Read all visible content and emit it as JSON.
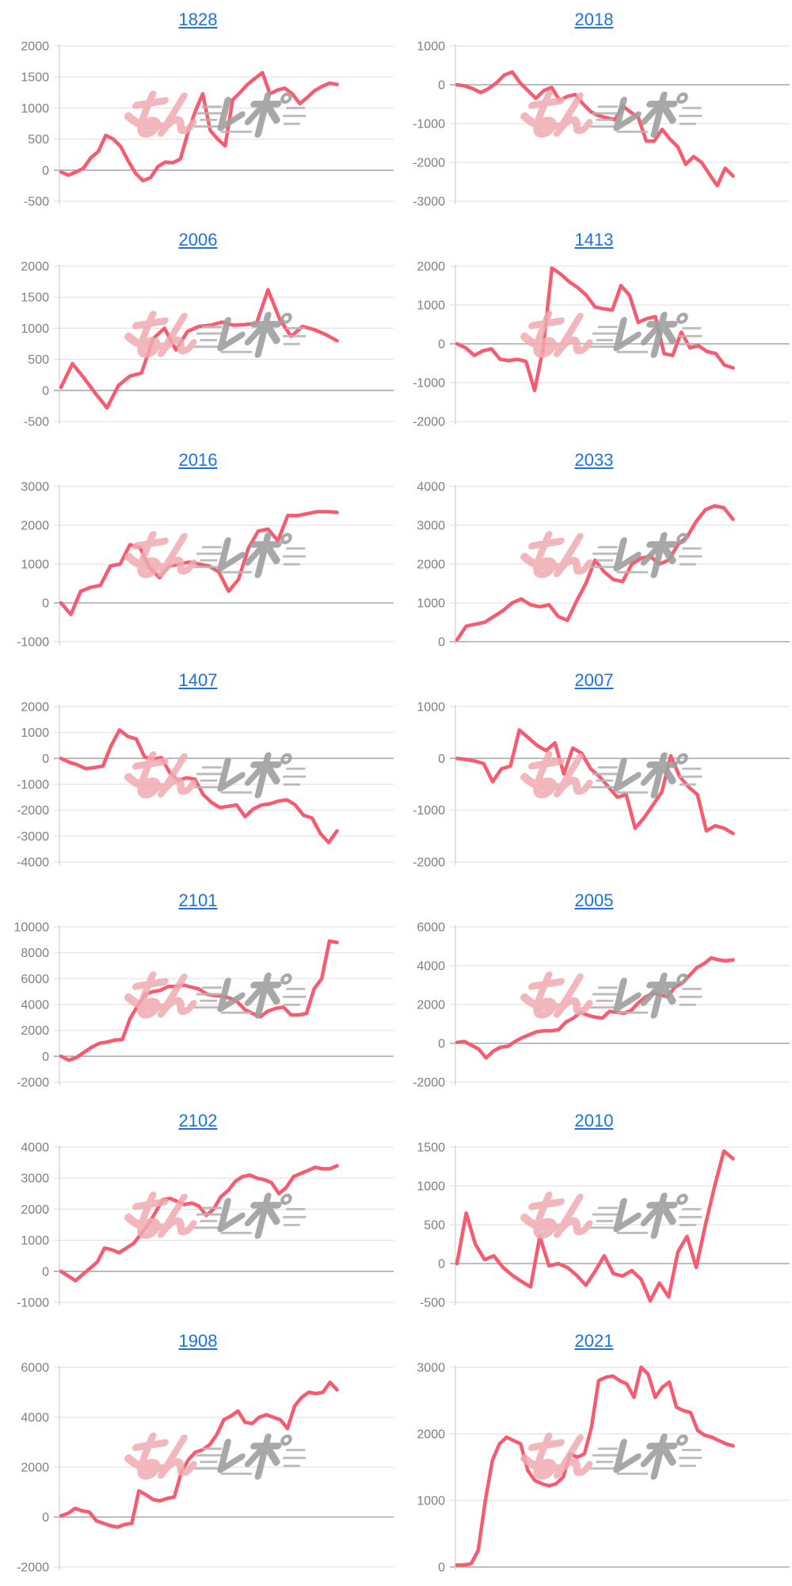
{
  "watermark": {
    "text": "みんレポ",
    "pink": "#f0abb1",
    "gray": "#9f9f9f",
    "speed": "#b5b5b5"
  },
  "style": {
    "background": "#ffffff",
    "line_color": "#f85b6f",
    "title_color": "#1a73e8",
    "axis_label_color": "#7f7f7f",
    "grid_color": "#e3e3e3",
    "zero_line_color": "#a9a9a9",
    "axis_line_color": "#cfcfcf"
  },
  "chart_data": [
    {
      "type": "line",
      "title": "1828",
      "ylim": [
        -500,
        2000
      ],
      "yticks": [
        2000,
        1500,
        1000,
        500,
        0,
        -500
      ],
      "values": [
        -30,
        -80,
        -30,
        30,
        200,
        300,
        560,
        500,
        380,
        150,
        -50,
        -170,
        -120,
        60,
        130,
        120,
        180,
        600,
        950,
        1230,
        640,
        500,
        390,
        1130,
        1250,
        1380,
        1480,
        1570,
        1230,
        1290,
        1320,
        1230,
        1070,
        1170,
        1280,
        1350,
        1400,
        1380
      ]
    },
    {
      "type": "line",
      "title": "2018",
      "ylim": [
        -3000,
        1000
      ],
      "yticks": [
        1000,
        0,
        -1000,
        -2000,
        -3000
      ],
      "values": [
        0,
        -30,
        -100,
        -200,
        -100,
        50,
        250,
        330,
        50,
        -150,
        -350,
        -150,
        -70,
        -400,
        -300,
        -250,
        -500,
        -700,
        -800,
        -850,
        -900,
        -550,
        -700,
        -850,
        -1450,
        -1450,
        -1150,
        -1400,
        -1600,
        -2050,
        -1850,
        -2000,
        -2300,
        -2600,
        -2150,
        -2350
      ]
    },
    {
      "type": "line",
      "title": "2006",
      "ylim": [
        -500,
        2000
      ],
      "yticks": [
        2000,
        1500,
        1000,
        500,
        0,
        -500
      ],
      "values": [
        50,
        430,
        200,
        -50,
        -280,
        80,
        230,
        280,
        830,
        1000,
        650,
        950,
        1030,
        1050,
        1100,
        1050,
        1060,
        1080,
        1620,
        1150,
        870,
        1030,
        980,
        900,
        800
      ]
    },
    {
      "type": "line",
      "title": "1413",
      "ylim": [
        -2000,
        2000
      ],
      "yticks": [
        2000,
        1000,
        0,
        -1000,
        -2000
      ],
      "values": [
        0,
        -100,
        -300,
        -180,
        -130,
        -400,
        -430,
        -400,
        -450,
        -1200,
        -100,
        1950,
        1800,
        1600,
        1450,
        1250,
        950,
        900,
        870,
        1500,
        1250,
        550,
        650,
        700,
        -250,
        -300,
        300,
        -100,
        -50,
        -200,
        -250,
        -550,
        -620
      ]
    },
    {
      "type": "line",
      "title": "2016",
      "ylim": [
        -1000,
        3000
      ],
      "yticks": [
        3000,
        2000,
        1000,
        0,
        -1000
      ],
      "values": [
        0,
        -300,
        300,
        400,
        450,
        950,
        1000,
        1500,
        1430,
        900,
        650,
        950,
        1000,
        1050,
        1000,
        950,
        800,
        300,
        600,
        1400,
        1850,
        1900,
        1600,
        2250,
        2250,
        2300,
        2350,
        2350,
        2330
      ]
    },
    {
      "type": "line",
      "title": "2033",
      "ylim": [
        0,
        4000
      ],
      "yticks": [
        4000,
        3000,
        2000,
        1000,
        0
      ],
      "values": [
        50,
        400,
        450,
        500,
        650,
        800,
        1000,
        1100,
        950,
        900,
        950,
        650,
        550,
        1050,
        1500,
        2100,
        1800,
        1600,
        1550,
        2000,
        2150,
        2200,
        2000,
        2100,
        2500,
        2700,
        3100,
        3400,
        3500,
        3450,
        3150
      ]
    },
    {
      "type": "line",
      "title": "1407",
      "ylim": [
        -4000,
        2000
      ],
      "yticks": [
        2000,
        1000,
        0,
        -1000,
        -2000,
        -3000,
        -4000
      ],
      "values": [
        0,
        -150,
        -250,
        -400,
        -350,
        -300,
        500,
        1100,
        850,
        750,
        50,
        -30,
        30,
        -550,
        -850,
        -750,
        -800,
        -1400,
        -1700,
        -1900,
        -1850,
        -1800,
        -2250,
        -1950,
        -1800,
        -1750,
        -1650,
        -1600,
        -1800,
        -2200,
        -2300,
        -2900,
        -3250,
        -2800
      ]
    },
    {
      "type": "line",
      "title": "2007",
      "ylim": [
        -2000,
        1000
      ],
      "yticks": [
        1000,
        0,
        -1000,
        -2000
      ],
      "values": [
        0,
        -20,
        -50,
        -100,
        -450,
        -200,
        -150,
        550,
        400,
        250,
        150,
        300,
        -300,
        200,
        100,
        -200,
        -350,
        -550,
        -750,
        -700,
        -1350,
        -1150,
        -900,
        -650,
        50,
        -350,
        -550,
        -700,
        -1400,
        -1300,
        -1350,
        -1450
      ]
    },
    {
      "type": "line",
      "title": "2101",
      "ylim": [
        -2000,
        10000
      ],
      "yticks": [
        10000,
        8000,
        6000,
        4000,
        2000,
        0,
        -2000
      ],
      "values": [
        0,
        -300,
        -100,
        300,
        700,
        1000,
        1100,
        1250,
        1300,
        2900,
        3900,
        4800,
        5000,
        5100,
        5400,
        5400,
        5500,
        5350,
        5200,
        4800,
        4700,
        4650,
        4500,
        4200,
        3600,
        3300,
        3050,
        3500,
        3700,
        3800,
        3200,
        3200,
        3300,
        5200,
        6000,
        8900,
        8800
      ]
    },
    {
      "type": "line",
      "title": "2005",
      "ylim": [
        -2000,
        6000
      ],
      "yticks": [
        6000,
        4000,
        2000,
        0,
        -2000
      ],
      "values": [
        50,
        100,
        -100,
        -300,
        -750,
        -400,
        -200,
        -150,
        100,
        300,
        450,
        600,
        650,
        650,
        700,
        1100,
        1300,
        1600,
        1450,
        1350,
        1300,
        1650,
        1600,
        1550,
        1700,
        2100,
        2400,
        2600,
        2500,
        2400,
        2900,
        3100,
        3500,
        3900,
        4100,
        4400,
        4300,
        4250,
        4300
      ]
    },
    {
      "type": "line",
      "title": "2102",
      "ylim": [
        -1000,
        4000
      ],
      "yticks": [
        4000,
        3000,
        2000,
        1000,
        0,
        -1000
      ],
      "values": [
        0,
        -150,
        -300,
        -100,
        100,
        300,
        750,
        700,
        600,
        750,
        900,
        1200,
        1500,
        1900,
        2300,
        2350,
        2250,
        2150,
        2200,
        2100,
        1800,
        2000,
        2400,
        2600,
        2900,
        3050,
        3100,
        3000,
        2950,
        2850,
        2500,
        2700,
        3050,
        3150,
        3250,
        3350,
        3300,
        3300,
        3400
      ]
    },
    {
      "type": "line",
      "title": "2010",
      "ylim": [
        -500,
        1500
      ],
      "yticks": [
        1500,
        1000,
        500,
        0,
        -500
      ],
      "values": [
        0,
        650,
        250,
        50,
        100,
        -50,
        -150,
        -230,
        -300,
        350,
        -30,
        0,
        -50,
        -150,
        -280,
        -100,
        100,
        -130,
        -160,
        -90,
        -200,
        -480,
        -250,
        -430,
        150,
        350,
        -50,
        500,
        1000,
        1450,
        1350
      ]
    },
    {
      "type": "line",
      "title": "1908",
      "ylim": [
        -2000,
        6000
      ],
      "yticks": [
        6000,
        4000,
        2000,
        0,
        -2000
      ],
      "values": [
        50,
        150,
        350,
        250,
        200,
        -150,
        -250,
        -350,
        -400,
        -300,
        -250,
        1050,
        900,
        700,
        650,
        750,
        800,
        1800,
        2300,
        2600,
        2700,
        2900,
        3300,
        3900,
        4050,
        4250,
        3800,
        3750,
        4000,
        4100,
        4000,
        3900,
        3550,
        4450,
        4800,
        5000,
        4950,
        5000,
        5400,
        5100
      ]
    },
    {
      "type": "line",
      "title": "2021",
      "ylim": [
        0,
        3000
      ],
      "yticks": [
        3000,
        2000,
        1000,
        0
      ],
      "values": [
        30,
        30,
        50,
        250,
        1000,
        1600,
        1850,
        1950,
        1900,
        1850,
        1450,
        1300,
        1250,
        1220,
        1250,
        1350,
        1700,
        1650,
        1700,
        2100,
        2800,
        2850,
        2870,
        2800,
        2750,
        2550,
        3000,
        2900,
        2550,
        2700,
        2780,
        2400,
        2350,
        2320,
        2050,
        1980,
        1950,
        1900,
        1850,
        1820
      ]
    }
  ]
}
